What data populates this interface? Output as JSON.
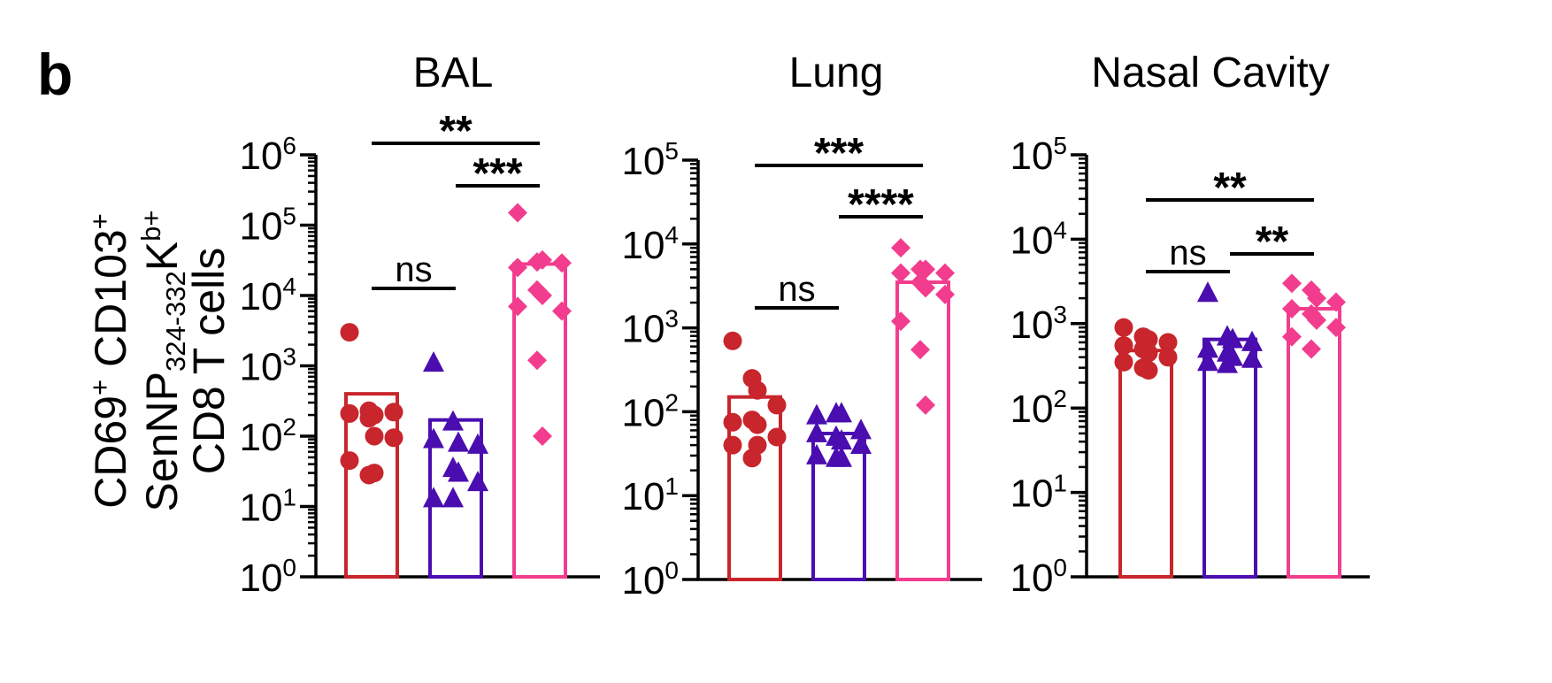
{
  "panel_label": "b",
  "ylabel_lines": [
    {
      "parts": [
        {
          "t": "CD69"
        },
        {
          "t": "+",
          "sup": true
        },
        {
          "t": " CD103"
        },
        {
          "t": "+",
          "sup": true
        }
      ]
    },
    {
      "parts": [
        {
          "t": "SenNP"
        },
        {
          "t": "324-332",
          "sub": true
        },
        {
          "t": "K"
        },
        {
          "t": "b+",
          "sup": true
        }
      ]
    },
    {
      "parts": [
        {
          "t": "CD8 T cells"
        }
      ]
    }
  ],
  "colors": {
    "g1": "#C8252C",
    "g2": "#4A0DB0",
    "g3": "#F23D8E",
    "axis": "#000000"
  },
  "chart_data": [
    {
      "type": "bar",
      "title": "BAL",
      "yscale": "log",
      "ylim": [
        1,
        1000000
      ],
      "yticks": [
        {
          "base": "10",
          "exp": "0"
        },
        {
          "base": "10",
          "exp": "1"
        },
        {
          "base": "10",
          "exp": "2"
        },
        {
          "base": "10",
          "exp": "3"
        },
        {
          "base": "10",
          "exp": "4"
        },
        {
          "base": "10",
          "exp": "5"
        },
        {
          "base": "10",
          "exp": "6"
        }
      ],
      "series": [
        {
          "marker": "circle",
          "color": "#C8252C",
          "bar": 400,
          "points": [
            3000,
            230,
            200,
            220,
            210,
            180,
            100,
            95,
            45,
            28,
            30
          ]
        },
        {
          "marker": "triangle",
          "color": "#4A0DB0",
          "bar": 170,
          "points": [
            1100,
            160,
            80,
            75,
            90,
            35,
            30,
            22,
            13,
            13
          ]
        },
        {
          "marker": "diamond",
          "color": "#F23D8E",
          "bar": 28000,
          "points": [
            150000,
            30000,
            32000,
            29000,
            25000,
            12000,
            10000,
            6000,
            7000,
            1200,
            100
          ]
        }
      ],
      "significance": [
        {
          "label": "**",
          "from": 0,
          "to": 2
        },
        {
          "label": "***",
          "from": 1,
          "to": 2
        },
        {
          "label": "ns",
          "from": 0,
          "to": 1
        }
      ]
    },
    {
      "type": "bar",
      "title": "Lung",
      "yscale": "log",
      "ylim": [
        1,
        100000
      ],
      "yticks": [
        {
          "base": "10",
          "exp": "0"
        },
        {
          "base": "10",
          "exp": "1"
        },
        {
          "base": "10",
          "exp": "2"
        },
        {
          "base": "10",
          "exp": "3"
        },
        {
          "base": "10",
          "exp": "4"
        },
        {
          "base": "10",
          "exp": "5"
        }
      ],
      "series": [
        {
          "marker": "circle",
          "color": "#C8252C",
          "bar": 150,
          "points": [
            700,
            250,
            180,
            120,
            75,
            80,
            70,
            50,
            40,
            28,
            40
          ]
        },
        {
          "marker": "triangle",
          "color": "#4A0DB0",
          "bar": 55,
          "points": [
            90,
            95,
            95,
            60,
            55,
            50,
            45,
            40,
            30,
            28,
            28
          ]
        },
        {
          "marker": "diamond",
          "color": "#F23D8E",
          "bar": 3500,
          "points": [
            9000,
            5000,
            5000,
            4500,
            4500,
            3500,
            3000,
            2500,
            1200,
            550,
            120
          ]
        }
      ],
      "significance": [
        {
          "label": "***",
          "from": 0,
          "to": 2
        },
        {
          "label": "****",
          "from": 1,
          "to": 2
        },
        {
          "label": "ns",
          "from": 0,
          "to": 1
        }
      ]
    },
    {
      "type": "bar",
      "title": "Nasal Cavity",
      "yscale": "log",
      "ylim": [
        1,
        100000
      ],
      "yticks": [
        {
          "base": "10",
          "exp": "0"
        },
        {
          "base": "10",
          "exp": "1"
        },
        {
          "base": "10",
          "exp": "2"
        },
        {
          "base": "10",
          "exp": "3"
        },
        {
          "base": "10",
          "exp": "4"
        },
        {
          "base": "10",
          "exp": "5"
        }
      ],
      "series": [
        {
          "marker": "circle",
          "color": "#C8252C",
          "bar": 480,
          "points": [
            900,
            700,
            650,
            600,
            550,
            500,
            450,
            400,
            350,
            300,
            280
          ]
        },
        {
          "marker": "triangle",
          "color": "#4A0DB0",
          "bar": 650,
          "points": [
            2300,
            700,
            650,
            600,
            500,
            450,
            400,
            380,
            350,
            330
          ]
        },
        {
          "marker": "diamond",
          "color": "#F23D8E",
          "bar": 1500,
          "points": [
            3000,
            2500,
            2000,
            1800,
            1500,
            1300,
            1100,
            900,
            700,
            500
          ]
        }
      ],
      "significance": [
        {
          "label": "**",
          "from": 0,
          "to": 2
        },
        {
          "label": "ns",
          "from": 0,
          "to": 1
        },
        {
          "label": "**",
          "from": 1,
          "to": 2
        }
      ]
    }
  ]
}
